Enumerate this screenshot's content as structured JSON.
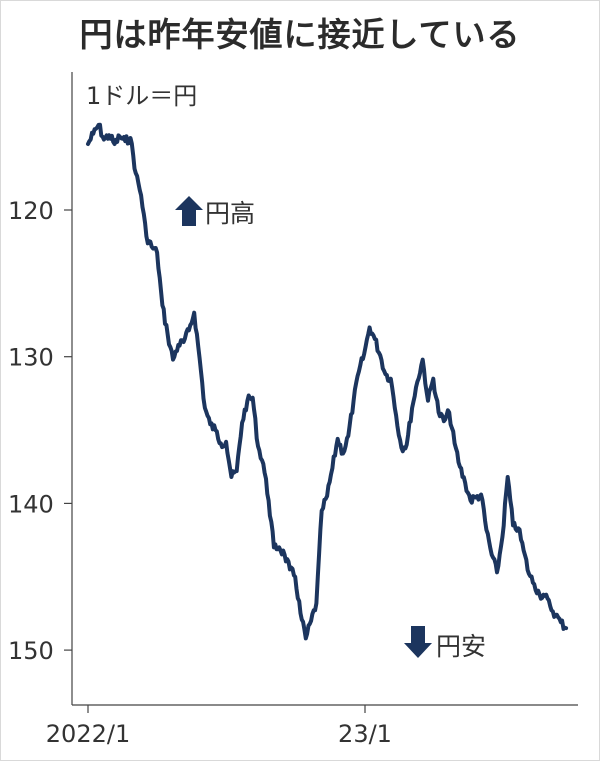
{
  "title": "円は昨年安値に接近している",
  "chart_data": {
    "type": "line",
    "title": "円は昨年安値に接近している",
    "ylabel": "1ドル＝円",
    "y_inverted": true,
    "ylim": [
      113.5,
      153
    ],
    "yticks": [
      "120",
      "130",
      "140",
      "150"
    ],
    "xticks": [
      "2022/1",
      "23/1"
    ],
    "xlim": [
      "2022-01",
      "2023-10"
    ],
    "grid": false,
    "annotations": {
      "up": "円高",
      "down": "円安"
    },
    "colors": {
      "line": "#1c355e",
      "arrow": "#1c355e",
      "axis": "#444444"
    },
    "series": [
      {
        "name": "",
        "x": [
          "2022-01-03",
          "2022-01-10",
          "2022-01-17",
          "2022-01-24",
          "2022-01-31",
          "2022-02-07",
          "2022-02-14",
          "2022-02-21",
          "2022-02-28",
          "2022-03-07",
          "2022-03-14",
          "2022-03-21",
          "2022-03-28",
          "2022-04-04",
          "2022-04-11",
          "2022-04-18",
          "2022-04-25",
          "2022-05-02",
          "2022-05-09",
          "2022-05-16",
          "2022-05-23",
          "2022-05-30",
          "2022-06-06",
          "2022-06-13",
          "2022-06-20",
          "2022-06-27",
          "2022-07-04",
          "2022-07-11",
          "2022-07-18",
          "2022-07-25",
          "2022-08-01",
          "2022-08-08",
          "2022-08-15",
          "2022-08-22",
          "2022-08-29",
          "2022-09-05",
          "2022-09-12",
          "2022-09-19",
          "2022-09-26",
          "2022-10-03",
          "2022-10-10",
          "2022-10-17",
          "2022-10-24",
          "2022-10-31",
          "2022-11-07",
          "2022-11-14",
          "2022-11-21",
          "2022-11-28",
          "2022-12-05",
          "2022-12-12",
          "2022-12-19",
          "2022-12-26",
          "2023-01-02",
          "2023-01-09",
          "2023-01-16",
          "2023-01-23",
          "2023-01-30",
          "2023-02-06",
          "2023-02-13",
          "2023-02-20",
          "2023-02-27",
          "2023-03-06",
          "2023-03-13",
          "2023-03-20",
          "2023-03-27",
          "2023-04-03",
          "2023-04-10",
          "2023-04-17",
          "2023-04-24",
          "2023-05-01",
          "2023-05-08",
          "2023-05-15",
          "2023-05-22",
          "2023-05-29",
          "2023-06-05",
          "2023-06-12",
          "2023-06-19",
          "2023-06-26",
          "2023-07-03",
          "2023-07-10",
          "2023-07-17",
          "2023-07-24",
          "2023-07-31",
          "2023-08-07",
          "2023-08-14",
          "2023-08-21",
          "2023-08-28",
          "2023-09-04",
          "2023-09-11",
          "2023-09-18",
          "2023-09-25"
        ],
        "values": [
          115.5,
          114.8,
          114.2,
          115.2,
          114.9,
          115.5,
          115.0,
          115.3,
          115.1,
          117.5,
          119.0,
          121.8,
          122.5,
          122.9,
          126.5,
          128.5,
          130.2,
          129.2,
          129.0,
          128.2,
          127.0,
          130.1,
          133.5,
          134.6,
          135.0,
          135.9,
          135.8,
          138.2,
          137.8,
          134.5,
          133.0,
          132.8,
          136.1,
          137.3,
          139.8,
          143.0,
          143.0,
          143.5,
          144.5,
          145.0,
          147.5,
          149.2,
          148.0,
          146.8,
          140.5,
          139.5,
          137.6,
          135.6,
          136.6,
          135.4,
          133.0,
          131.0,
          129.8,
          128.0,
          128.8,
          129.9,
          131.2,
          131.5,
          134.0,
          136.2,
          136.0,
          133.5,
          131.7,
          130.2,
          133.0,
          131.5,
          133.8,
          134.4,
          133.8,
          135.9,
          137.5,
          138.6,
          139.8,
          139.6,
          139.4,
          141.8,
          143.5,
          144.7,
          142.3,
          138.2,
          141.5,
          141.7,
          143.2,
          144.8,
          145.5,
          146.2,
          146.3,
          147.0,
          147.6,
          148.1,
          148.5
        ]
      }
    ]
  }
}
